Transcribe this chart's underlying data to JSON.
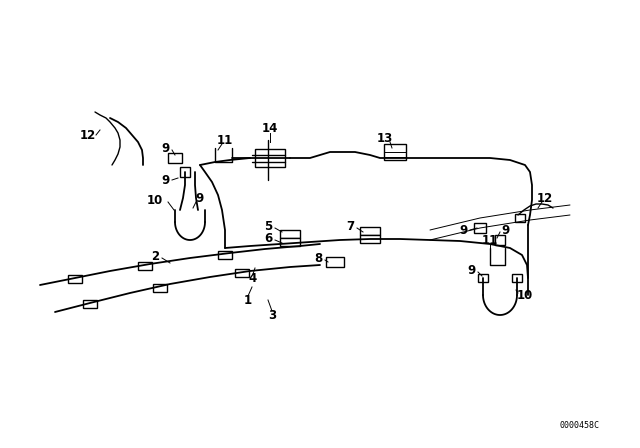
{
  "bg_color": "#ffffff",
  "line_color": "#000000",
  "lw_pipe": 1.3,
  "lw_thin": 0.8,
  "fig_width": 6.4,
  "fig_height": 4.48,
  "dpi": 100,
  "part_id": "0000458C",
  "xlim": [
    0,
    640
  ],
  "ylim": [
    0,
    448
  ]
}
